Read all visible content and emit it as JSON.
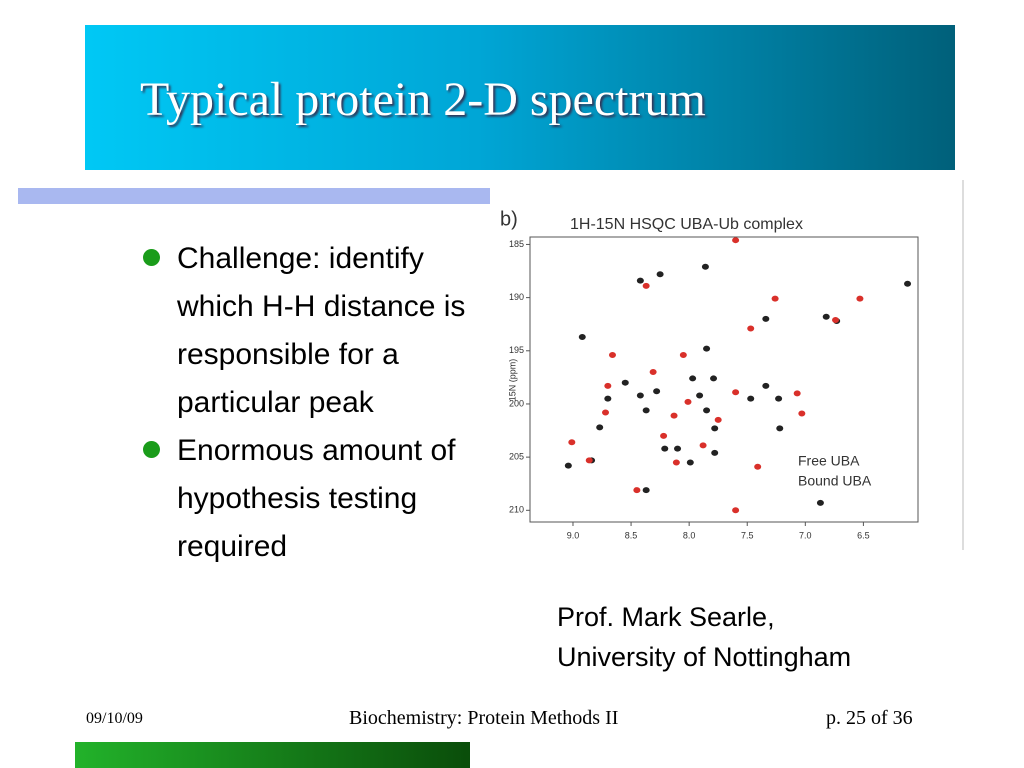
{
  "header": {
    "title": "Typical protein 2-D spectrum"
  },
  "bullets": [
    "Challenge: identify which H-H distance is responsible for a particular peak",
    "Enormous amount of hypothesis testing required"
  ],
  "caption": [
    "Prof. Mark Searle,",
    "University of Nottingham"
  ],
  "footer": {
    "date": "09/10/09",
    "course": "Biochemistry: Protein Methods II",
    "page": "p. 25 of 36"
  },
  "chart_data": {
    "type": "scatter",
    "panel_label": "b)",
    "title": "1H-15N HSQC UBA-Ub complex",
    "ylabel": "15N (ppm)",
    "xlim": [
      9.37,
      6.03
    ],
    "ylim": [
      184.3,
      211.1
    ],
    "xticks": [
      {
        "value": 9.0,
        "label": "9.0"
      },
      {
        "value": 8.5,
        "label": "8.5"
      },
      {
        "value": 8.0,
        "label": "8.0"
      },
      {
        "value": 7.5,
        "label": "7.5"
      },
      {
        "value": 7.0,
        "label": "7.0"
      },
      {
        "value": 6.5,
        "label": "6.5"
      }
    ],
    "yticks": [
      185,
      190,
      195,
      200,
      205,
      210
    ],
    "legend": "lower right",
    "series": [
      {
        "name": "Free UBA",
        "color": "#222222",
        "x": [
          8.42,
          8.25,
          7.86,
          6.12,
          8.92,
          7.34,
          6.82,
          6.73,
          7.85,
          8.55,
          8.42,
          7.97,
          7.79,
          7.34,
          8.28,
          7.91,
          7.47,
          7.23,
          8.37,
          8.77,
          7.85,
          7.78,
          7.22,
          8.21,
          7.99,
          7.78,
          9.04,
          8.84,
          8.37,
          6.87,
          8.1,
          8.7
        ],
        "values": [
          188.4,
          187.8,
          187.1,
          188.7,
          193.7,
          192.0,
          191.8,
          192.2,
          194.8,
          198.0,
          199.2,
          197.6,
          197.6,
          198.3,
          198.8,
          199.2,
          199.5,
          199.5,
          200.6,
          202.2,
          200.6,
          202.3,
          202.3,
          204.2,
          205.5,
          204.6,
          205.8,
          205.3,
          208.1,
          209.3,
          204.2,
          199.5
        ]
      },
      {
        "name": "Bound UBA",
        "color": "#d9302a",
        "x": [
          8.37,
          7.6,
          7.26,
          6.53,
          7.47,
          6.74,
          8.66,
          8.05,
          8.31,
          8.7,
          8.72,
          8.01,
          7.6,
          7.07,
          9.01,
          8.86,
          8.22,
          8.11,
          7.88,
          7.41,
          8.45,
          7.6,
          8.13,
          7.03,
          7.75
        ],
        "values": [
          188.9,
          184.6,
          190.1,
          190.1,
          192.9,
          192.1,
          195.4,
          195.4,
          197.0,
          198.3,
          200.8,
          199.8,
          198.9,
          199.0,
          203.6,
          205.3,
          203.0,
          205.5,
          203.9,
          205.9,
          208.1,
          210.0,
          201.1,
          200.9,
          201.5
        ]
      }
    ]
  }
}
